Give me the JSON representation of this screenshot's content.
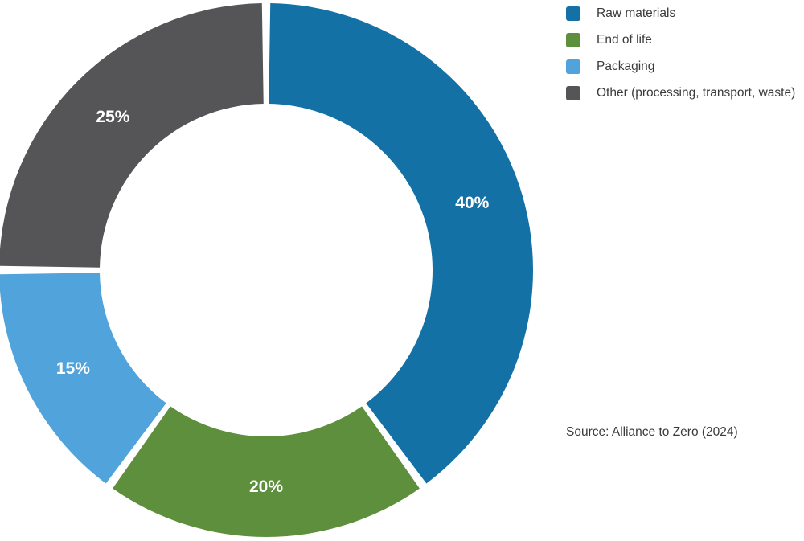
{
  "chart_data": {
    "type": "pie",
    "donut": true,
    "categories": [
      "Raw materials",
      "End of life",
      "Packaging",
      "Other (processing, transport, waste)"
    ],
    "values": [
      40,
      20,
      15,
      25
    ],
    "value_labels": [
      "40%",
      "20%",
      "15%",
      "25%"
    ],
    "colors": [
      "#1471a6",
      "#5e8f3d",
      "#51a3db",
      "#555456"
    ],
    "legend_position": "top-right"
  },
  "source": "Source: Alliance to Zero (2024)"
}
